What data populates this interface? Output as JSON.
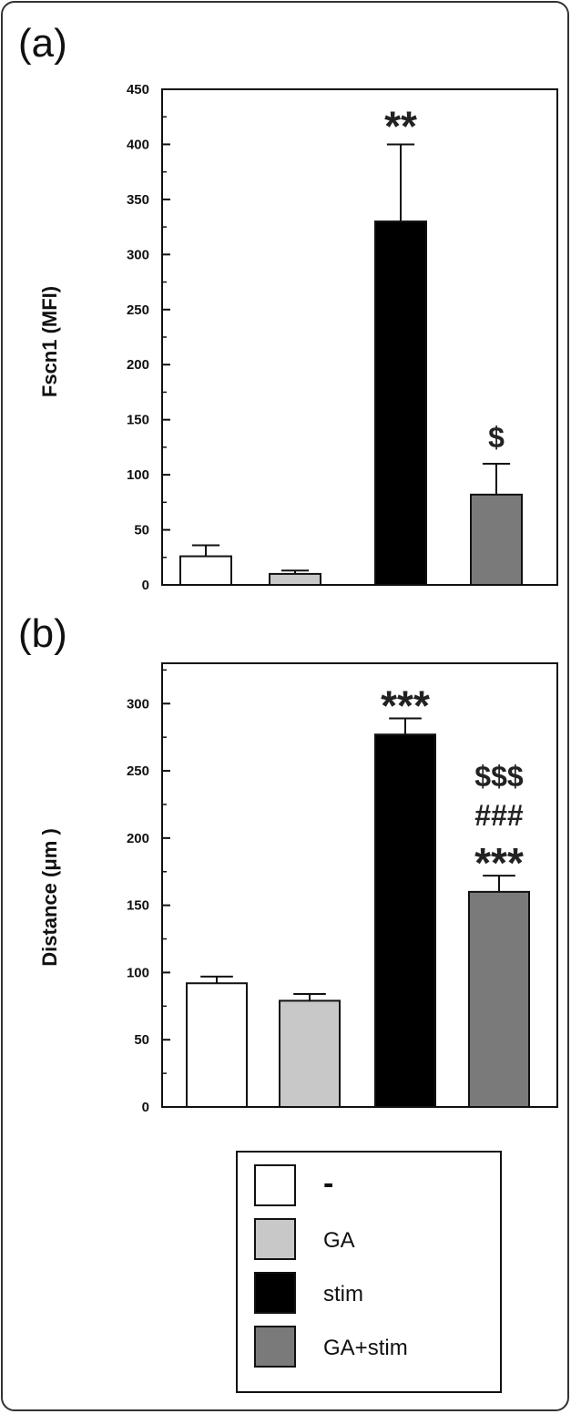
{
  "chart_data": [
    {
      "panel_label": "(a)",
      "type": "bar",
      "categories": [
        "-",
        "GA",
        "stim",
        "GA+stim"
      ],
      "values": [
        26,
        10,
        330,
        82
      ],
      "errors": [
        10,
        3,
        70,
        28
      ],
      "ylabel": "Fscn1 (MFI)",
      "ylim": [
        0,
        450
      ],
      "yticks": [
        0,
        50,
        100,
        150,
        200,
        250,
        300,
        350,
        400,
        450
      ],
      "ytick_labels": [
        "0",
        "50",
        "100",
        "150",
        "200",
        "250",
        "300",
        "350",
        "400",
        "450"
      ],
      "annotations": [
        {
          "category": "stim",
          "lines": [
            "**"
          ]
        },
        {
          "category": "GA+stim",
          "lines": [
            "$"
          ]
        }
      ],
      "grid": false
    },
    {
      "panel_label": "(b)",
      "type": "bar",
      "categories": [
        "-",
        "GA",
        "stim",
        "GA+stim"
      ],
      "values": [
        92,
        79,
        277,
        160
      ],
      "errors": [
        5,
        5,
        12,
        12
      ],
      "ylabel": "Distance (μm )",
      "ylim": [
        0,
        330
      ],
      "yticks": [
        0,
        50,
        100,
        150,
        200,
        250,
        300
      ],
      "ytick_labels": [
        "0",
        "50",
        "100",
        "150",
        "200",
        "250",
        "300"
      ],
      "annotations": [
        {
          "category": "stim",
          "lines": [
            "***"
          ]
        },
        {
          "category": "GA+stim",
          "lines": [
            "$$$",
            "###",
            "***"
          ]
        }
      ],
      "grid": false
    }
  ],
  "legend": {
    "placement": "bottom",
    "items": [
      {
        "label": "-",
        "color": "#ffffff"
      },
      {
        "label": "GA",
        "color": "#c8c8c8"
      },
      {
        "label": "stim",
        "color": "#000000"
      },
      {
        "label": "GA+stim",
        "color": "#7a7a7a"
      }
    ]
  },
  "colors": {
    "-": "#ffffff",
    "GA": "#c8c8c8",
    "stim": "#000000",
    "GA+stim": "#7a7a7a",
    "frame": "#111111"
  }
}
